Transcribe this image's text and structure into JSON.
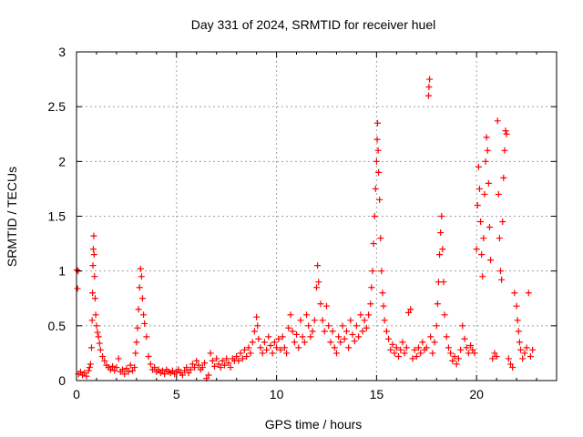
{
  "chart_data": {
    "type": "scatter",
    "title": "Day 331 of 2024, SRMTID for receiver huel",
    "xlabel": "GPS time / hours",
    "ylabel": "SRMTID / TECUs",
    "xlim": [
      0,
      24
    ],
    "ylim": [
      0,
      3
    ],
    "xticks": [
      0,
      5,
      10,
      15,
      20
    ],
    "yticks": [
      0,
      0.5,
      1,
      1.5,
      2,
      2.5,
      3
    ],
    "xtick_labels": [
      "0",
      "5",
      "10",
      "15",
      "20"
    ],
    "ytick_labels": [
      "0",
      "0.5",
      "1",
      "1.5",
      "2",
      "2.5",
      "3"
    ],
    "grid": true,
    "marker": "+",
    "color": "#ff0000",
    "series": [
      {
        "name": "SRMTID",
        "points": [
          [
            0.02,
            1.01
          ],
          [
            0.05,
            0.84
          ],
          [
            0.08,
            1.0
          ],
          [
            0.1,
            0.06
          ],
          [
            0.2,
            0.08
          ],
          [
            0.3,
            0.05
          ],
          [
            0.4,
            0.07
          ],
          [
            0.5,
            0.04
          ],
          [
            0.6,
            0.09
          ],
          [
            0.65,
            0.12
          ],
          [
            0.7,
            0.15
          ],
          [
            0.75,
            0.3
          ],
          [
            0.78,
            0.55
          ],
          [
            0.8,
            0.8
          ],
          [
            0.82,
            1.05
          ],
          [
            0.84,
            1.2
          ],
          [
            0.86,
            1.32
          ],
          [
            0.88,
            1.15
          ],
          [
            0.9,
            0.95
          ],
          [
            0.93,
            0.75
          ],
          [
            0.96,
            0.6
          ],
          [
            1.0,
            0.5
          ],
          [
            1.05,
            0.44
          ],
          [
            1.1,
            0.4
          ],
          [
            1.15,
            0.34
          ],
          [
            1.2,
            0.28
          ],
          [
            1.3,
            0.22
          ],
          [
            1.4,
            0.18
          ],
          [
            1.5,
            0.14
          ],
          [
            1.6,
            0.12
          ],
          [
            1.7,
            0.1
          ],
          [
            1.8,
            0.13
          ],
          [
            1.9,
            0.09
          ],
          [
            2.0,
            0.12
          ],
          [
            2.1,
            0.2
          ],
          [
            2.2,
            0.08
          ],
          [
            2.3,
            0.1
          ],
          [
            2.4,
            0.06
          ],
          [
            2.5,
            0.11
          ],
          [
            2.6,
            0.08
          ],
          [
            2.7,
            0.14
          ],
          [
            2.8,
            0.09
          ],
          [
            2.9,
            0.12
          ],
          [
            2.95,
            0.25
          ],
          [
            3.0,
            0.35
          ],
          [
            3.05,
            0.48
          ],
          [
            3.1,
            0.65
          ],
          [
            3.15,
            0.85
          ],
          [
            3.2,
            1.02
          ],
          [
            3.25,
            0.95
          ],
          [
            3.3,
            0.75
          ],
          [
            3.35,
            0.6
          ],
          [
            3.4,
            0.52
          ],
          [
            3.5,
            0.4
          ],
          [
            3.6,
            0.22
          ],
          [
            3.7,
            0.15
          ],
          [
            3.8,
            0.1
          ],
          [
            3.9,
            0.12
          ],
          [
            4.0,
            0.08
          ],
          [
            4.1,
            0.1
          ],
          [
            4.2,
            0.07
          ],
          [
            4.3,
            0.09
          ],
          [
            4.4,
            0.06
          ],
          [
            4.5,
            0.1
          ],
          [
            4.6,
            0.08
          ],
          [
            4.7,
            0.07
          ],
          [
            4.8,
            0.09
          ],
          [
            4.9,
            0.06
          ],
          [
            5.0,
            0.08
          ],
          [
            5.1,
            0.1
          ],
          [
            5.2,
            0.07
          ],
          [
            5.3,
            0.05
          ],
          [
            5.4,
            0.09
          ],
          [
            5.5,
            0.12
          ],
          [
            5.6,
            0.07
          ],
          [
            5.7,
            0.1
          ],
          [
            5.8,
            0.15
          ],
          [
            5.9,
            0.12
          ],
          [
            6.0,
            0.18
          ],
          [
            6.1,
            0.14
          ],
          [
            6.2,
            0.1
          ],
          [
            6.3,
            0.12
          ],
          [
            6.4,
            0.16
          ],
          [
            6.5,
            0.02
          ],
          [
            6.6,
            0.05
          ],
          [
            6.7,
            0.25
          ],
          [
            6.8,
            0.18
          ],
          [
            6.9,
            0.13
          ],
          [
            7.0,
            0.2
          ],
          [
            7.1,
            0.15
          ],
          [
            7.2,
            0.12
          ],
          [
            7.3,
            0.18
          ],
          [
            7.4,
            0.14
          ],
          [
            7.5,
            0.2
          ],
          [
            7.6,
            0.16
          ],
          [
            7.7,
            0.12
          ],
          [
            7.8,
            0.2
          ],
          [
            7.9,
            0.18
          ],
          [
            8.0,
            0.22
          ],
          [
            8.1,
            0.18
          ],
          [
            8.2,
            0.25
          ],
          [
            8.3,
            0.2
          ],
          [
            8.4,
            0.28
          ],
          [
            8.5,
            0.22
          ],
          [
            8.6,
            0.3
          ],
          [
            8.7,
            0.25
          ],
          [
            8.8,
            0.35
          ],
          [
            8.9,
            0.45
          ],
          [
            9.0,
            0.58
          ],
          [
            9.05,
            0.5
          ],
          [
            9.1,
            0.38
          ],
          [
            9.2,
            0.3
          ],
          [
            9.3,
            0.25
          ],
          [
            9.4,
            0.35
          ],
          [
            9.5,
            0.28
          ],
          [
            9.6,
            0.4
          ],
          [
            9.7,
            0.32
          ],
          [
            9.8,
            0.25
          ],
          [
            9.9,
            0.35
          ],
          [
            10.0,
            0.3
          ],
          [
            10.1,
            0.38
          ],
          [
            10.2,
            0.28
          ],
          [
            10.3,
            0.4
          ],
          [
            10.4,
            0.3
          ],
          [
            10.5,
            0.25
          ],
          [
            10.6,
            0.48
          ],
          [
            10.7,
            0.6
          ],
          [
            10.8,
            0.45
          ],
          [
            10.9,
            0.35
          ],
          [
            11.0,
            0.42
          ],
          [
            11.1,
            0.3
          ],
          [
            11.2,
            0.55
          ],
          [
            11.3,
            0.4
          ],
          [
            11.4,
            0.35
          ],
          [
            11.5,
            0.6
          ],
          [
            11.6,
            0.5
          ],
          [
            11.7,
            0.4
          ],
          [
            11.8,
            0.45
          ],
          [
            11.9,
            0.55
          ],
          [
            12.0,
            0.85
          ],
          [
            12.05,
            1.05
          ],
          [
            12.1,
            0.9
          ],
          [
            12.2,
            0.7
          ],
          [
            12.3,
            0.55
          ],
          [
            12.4,
            0.45
          ],
          [
            12.5,
            0.68
          ],
          [
            12.6,
            0.5
          ],
          [
            12.7,
            0.35
          ],
          [
            12.8,
            0.45
          ],
          [
            12.9,
            0.3
          ],
          [
            13.0,
            0.25
          ],
          [
            13.1,
            0.4
          ],
          [
            13.2,
            0.35
          ],
          [
            13.3,
            0.5
          ],
          [
            13.4,
            0.38
          ],
          [
            13.5,
            0.45
          ],
          [
            13.6,
            0.3
          ],
          [
            13.7,
            0.55
          ],
          [
            13.8,
            0.42
          ],
          [
            13.9,
            0.36
          ],
          [
            14.0,
            0.5
          ],
          [
            14.1,
            0.4
          ],
          [
            14.2,
            0.6
          ],
          [
            14.3,
            0.45
          ],
          [
            14.4,
            0.55
          ],
          [
            14.5,
            0.48
          ],
          [
            14.6,
            0.6
          ],
          [
            14.7,
            0.7
          ],
          [
            14.75,
            0.85
          ],
          [
            14.8,
            1.0
          ],
          [
            14.85,
            1.25
          ],
          [
            14.9,
            1.5
          ],
          [
            14.95,
            1.75
          ],
          [
            15.0,
            2.0
          ],
          [
            15.03,
            2.2
          ],
          [
            15.05,
            2.35
          ],
          [
            15.08,
            2.1
          ],
          [
            15.1,
            1.9
          ],
          [
            15.15,
            1.65
          ],
          [
            15.2,
            1.3
          ],
          [
            15.25,
            1.0
          ],
          [
            15.3,
            0.8
          ],
          [
            15.35,
            0.68
          ],
          [
            15.4,
            0.55
          ],
          [
            15.5,
            0.45
          ],
          [
            15.6,
            0.38
          ],
          [
            15.7,
            0.28
          ],
          [
            15.8,
            0.33
          ],
          [
            15.9,
            0.25
          ],
          [
            16.0,
            0.3
          ],
          [
            16.1,
            0.22
          ],
          [
            16.2,
            0.28
          ],
          [
            16.3,
            0.35
          ],
          [
            16.4,
            0.25
          ],
          [
            16.5,
            0.3
          ],
          [
            16.6,
            0.62
          ],
          [
            16.7,
            0.65
          ],
          [
            16.8,
            0.2
          ],
          [
            16.9,
            0.28
          ],
          [
            17.0,
            0.22
          ],
          [
            17.1,
            0.3
          ],
          [
            17.2,
            0.25
          ],
          [
            17.3,
            0.35
          ],
          [
            17.4,
            0.28
          ],
          [
            17.5,
            0.3
          ],
          [
            17.6,
            2.6
          ],
          [
            17.62,
            2.68
          ],
          [
            17.65,
            2.75
          ],
          [
            17.7,
            0.4
          ],
          [
            17.8,
            0.25
          ],
          [
            17.9,
            0.35
          ],
          [
            18.0,
            0.5
          ],
          [
            18.05,
            0.7
          ],
          [
            18.1,
            0.9
          ],
          [
            18.15,
            1.15
          ],
          [
            18.2,
            1.35
          ],
          [
            18.25,
            1.5
          ],
          [
            18.3,
            1.2
          ],
          [
            18.35,
            0.9
          ],
          [
            18.4,
            0.6
          ],
          [
            18.5,
            0.4
          ],
          [
            18.6,
            0.3
          ],
          [
            18.7,
            0.25
          ],
          [
            18.8,
            0.18
          ],
          [
            18.9,
            0.22
          ],
          [
            19.0,
            0.15
          ],
          [
            19.1,
            0.2
          ],
          [
            19.2,
            0.28
          ],
          [
            19.3,
            0.5
          ],
          [
            19.4,
            0.38
          ],
          [
            19.5,
            0.3
          ],
          [
            19.6,
            0.25
          ],
          [
            19.7,
            0.32
          ],
          [
            19.8,
            0.28
          ],
          [
            19.9,
            0.25
          ],
          [
            20.0,
            1.2
          ],
          [
            20.05,
            1.6
          ],
          [
            20.1,
            1.95
          ],
          [
            20.15,
            1.75
          ],
          [
            20.2,
            1.45
          ],
          [
            20.25,
            1.15
          ],
          [
            20.3,
            0.95
          ],
          [
            20.35,
            1.3
          ],
          [
            20.4,
            1.7
          ],
          [
            20.45,
            2.0
          ],
          [
            20.5,
            2.22
          ],
          [
            20.55,
            2.1
          ],
          [
            20.6,
            1.8
          ],
          [
            20.65,
            1.4
          ],
          [
            20.7,
            1.1
          ],
          [
            20.8,
            0.2
          ],
          [
            20.9,
            0.25
          ],
          [
            21.0,
            0.22
          ],
          [
            21.05,
            2.37
          ],
          [
            21.1,
            1.7
          ],
          [
            21.15,
            1.3
          ],
          [
            21.2,
            1.0
          ],
          [
            21.25,
            0.92
          ],
          [
            21.3,
            1.45
          ],
          [
            21.35,
            1.85
          ],
          [
            21.4,
            2.1
          ],
          [
            21.45,
            2.28
          ],
          [
            21.5,
            2.25
          ],
          [
            21.6,
            0.2
          ],
          [
            21.7,
            0.15
          ],
          [
            21.8,
            0.12
          ],
          [
            21.9,
            0.8
          ],
          [
            22.0,
            0.68
          ],
          [
            22.05,
            0.55
          ],
          [
            22.1,
            0.45
          ],
          [
            22.15,
            0.35
          ],
          [
            22.2,
            0.28
          ],
          [
            22.3,
            0.2
          ],
          [
            22.4,
            0.25
          ],
          [
            22.5,
            0.3
          ],
          [
            22.6,
            0.8
          ],
          [
            22.7,
            0.22
          ],
          [
            22.8,
            0.28
          ]
        ]
      }
    ]
  }
}
